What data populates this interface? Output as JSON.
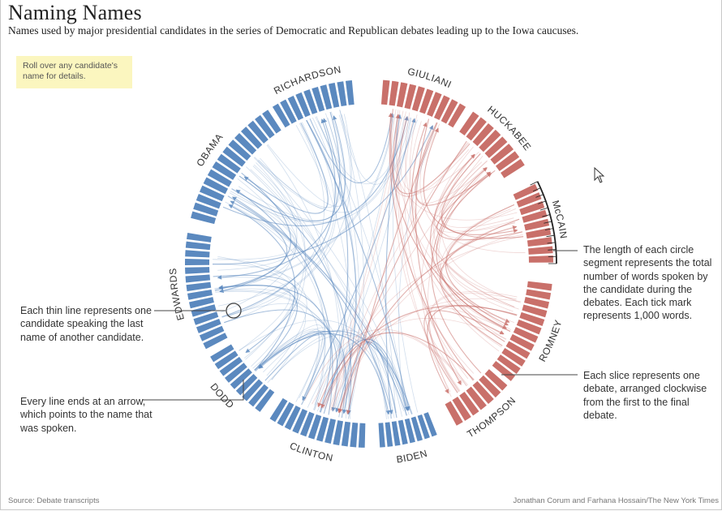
{
  "title": "Naming Names",
  "subtitle": "Names used by major presidential candidates in the series of Democratic and Republican debates leading up to the Iowa caucuses.",
  "tooltip": "Roll over any candidate's name for details.",
  "notes": {
    "thin_line": "Each thin line represents one candidate speaking the last name of another candidate.",
    "arrow": "Every line ends at an arrow, which points to the name that was spoken.",
    "segment_length": "The length of each circle segment represents the total number of words spoken by the candidate during the debates. Each tick mark represents 1,000 words.",
    "slice": "Each slice represents one debate, arranged clockwise from the first to the final debate."
  },
  "footer": {
    "source": "Source: Debate transcripts",
    "credit": "Jonathan Corum and Farhana Hossain/The New York Times"
  },
  "colors": {
    "democrat": "#5b89bf",
    "republican": "#c9706a",
    "tooltip_bg": "#fbf6bf"
  },
  "icons": [
    "mouse-cursor-icon",
    "circle-marker-icon"
  ],
  "chart_data": {
    "type": "chord",
    "segments": [
      {
        "name": "RICHARDSON",
        "party": "democrat",
        "start_deg": -32,
        "end_deg": -5,
        "slices": 10
      },
      {
        "name": "GIULIANI",
        "party": "republican",
        "start_deg": 4,
        "end_deg": 32,
        "slices": 10
      },
      {
        "name": "HUCKABEE",
        "party": "republican",
        "start_deg": 34,
        "end_deg": 58,
        "slices": 8
      },
      {
        "name": "McCAIN",
        "party": "republican",
        "start_deg": 64,
        "end_deg": 90,
        "slices": 9
      },
      {
        "name": "ROMNEY",
        "party": "republican",
        "start_deg": 96,
        "end_deg": 130,
        "slices": 12
      },
      {
        "name": "THOMPSON",
        "party": "republican",
        "start_deg": 131,
        "end_deg": 152,
        "slices": 7
      },
      {
        "name": "BIDEN",
        "party": "democrat",
        "start_deg": 158,
        "end_deg": 177,
        "slices": 8
      },
      {
        "name": "CLINTON",
        "party": "democrat",
        "start_deg": 181,
        "end_deg": 213,
        "slices": 12
      },
      {
        "name": "DODD",
        "party": "democrat",
        "start_deg": 216,
        "end_deg": 240,
        "slices": 9
      },
      {
        "name": "EDWARDS",
        "party": "democrat",
        "start_deg": 242,
        "end_deg": 280,
        "slices": 14
      },
      {
        "name": "OBAMA",
        "party": "democrat",
        "start_deg": 284,
        "end_deg": 327,
        "slices": 15
      }
    ],
    "highlighted_segment": "McCAIN",
    "mentions": [
      {
        "from": "CLINTON",
        "to": "RICHARDSON"
      },
      {
        "from": "CLINTON",
        "to": "OBAMA"
      },
      {
        "from": "CLINTON",
        "to": "EDWARDS"
      },
      {
        "from": "CLINTON",
        "to": "DODD"
      },
      {
        "from": "CLINTON",
        "to": "BIDEN"
      },
      {
        "from": "CLINTON",
        "to": "GIULIANI"
      },
      {
        "from": "OBAMA",
        "to": "CLINTON"
      },
      {
        "from": "OBAMA",
        "to": "EDWARDS"
      },
      {
        "from": "OBAMA",
        "to": "RICHARDSON"
      },
      {
        "from": "OBAMA",
        "to": "GIULIANI"
      },
      {
        "from": "EDWARDS",
        "to": "CLINTON"
      },
      {
        "from": "EDWARDS",
        "to": "OBAMA"
      },
      {
        "from": "EDWARDS",
        "to": "DODD"
      },
      {
        "from": "EDWARDS",
        "to": "GIULIANI"
      },
      {
        "from": "RICHARDSON",
        "to": "CLINTON"
      },
      {
        "from": "RICHARDSON",
        "to": "OBAMA"
      },
      {
        "from": "RICHARDSON",
        "to": "EDWARDS"
      },
      {
        "from": "RICHARDSON",
        "to": "GIULIANI"
      },
      {
        "from": "DODD",
        "to": "CLINTON"
      },
      {
        "from": "DODD",
        "to": "EDWARDS"
      },
      {
        "from": "DODD",
        "to": "OBAMA"
      },
      {
        "from": "DODD",
        "to": "BIDEN"
      },
      {
        "from": "BIDEN",
        "to": "CLINTON"
      },
      {
        "from": "BIDEN",
        "to": "OBAMA"
      },
      {
        "from": "BIDEN",
        "to": "GIULIANI"
      },
      {
        "from": "BIDEN",
        "to": "DODD"
      },
      {
        "from": "GIULIANI",
        "to": "CLINTON"
      },
      {
        "from": "GIULIANI",
        "to": "ROMNEY"
      },
      {
        "from": "GIULIANI",
        "to": "HUCKABEE"
      },
      {
        "from": "GIULIANI",
        "to": "THOMPSON"
      },
      {
        "from": "ROMNEY",
        "to": "GIULIANI"
      },
      {
        "from": "ROMNEY",
        "to": "CLINTON"
      },
      {
        "from": "ROMNEY",
        "to": "HUCKABEE"
      },
      {
        "from": "ROMNEY",
        "to": "McCAIN"
      },
      {
        "from": "ROMNEY",
        "to": "THOMPSON"
      },
      {
        "from": "McCAIN",
        "to": "CLINTON"
      },
      {
        "from": "McCAIN",
        "to": "ROMNEY"
      },
      {
        "from": "McCAIN",
        "to": "GIULIANI"
      },
      {
        "from": "McCAIN",
        "to": "HUCKABEE"
      },
      {
        "from": "HUCKABEE",
        "to": "ROMNEY"
      },
      {
        "from": "HUCKABEE",
        "to": "CLINTON"
      },
      {
        "from": "HUCKABEE",
        "to": "GIULIANI"
      },
      {
        "from": "HUCKABEE",
        "to": "McCAIN"
      },
      {
        "from": "THOMPSON",
        "to": "CLINTON"
      },
      {
        "from": "THOMPSON",
        "to": "ROMNEY"
      },
      {
        "from": "THOMPSON",
        "to": "GIULIANI"
      },
      {
        "from": "THOMPSON",
        "to": "HUCKABEE"
      },
      {
        "from": "RICHARDSON",
        "to": "BIDEN"
      },
      {
        "from": "OBAMA",
        "to": "BIDEN"
      },
      {
        "from": "EDWARDS",
        "to": "RICHARDSON"
      }
    ]
  }
}
